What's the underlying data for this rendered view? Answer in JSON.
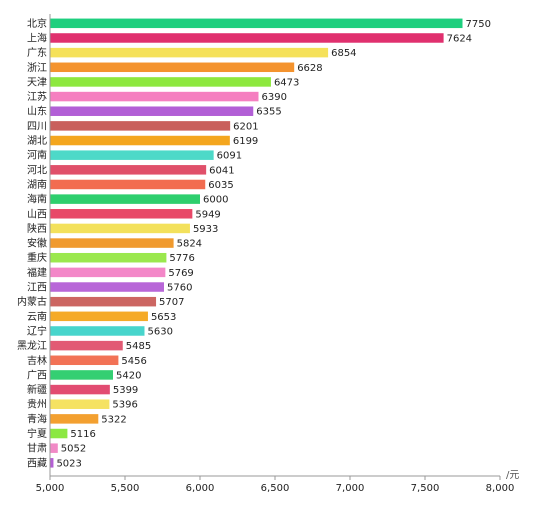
{
  "chart_data": {
    "type": "bar",
    "orientation": "horizontal",
    "categories": [
      "北京",
      "上海",
      "广东",
      "浙江",
      "天津",
      "江苏",
      "山东",
      "四川",
      "湖北",
      "河南",
      "河北",
      "湖南",
      "海南",
      "山西",
      "陕西",
      "安徽",
      "重庆",
      "福建",
      "江西",
      "内蒙古",
      "云南",
      "辽宁",
      "黑龙江",
      "吉林",
      "广西",
      "新疆",
      "贵州",
      "青海",
      "宁夏",
      "甘肃",
      "西藏"
    ],
    "values": [
      7750,
      7624,
      6854,
      6628,
      6473,
      6390,
      6355,
      6201,
      6199,
      6091,
      6041,
      6035,
      6000,
      5949,
      5933,
      5824,
      5776,
      5769,
      5760,
      5707,
      5653,
      5630,
      5485,
      5456,
      5420,
      5399,
      5396,
      5322,
      5116,
      5052,
      5023
    ],
    "colors": [
      "#1ecf7e",
      "#e0306e",
      "#f5e15a",
      "#f4932e",
      "#8ee83e",
      "#f57fc0",
      "#b25fd6",
      "#c9605c",
      "#f4a61e",
      "#4dd9c8",
      "#e0506a",
      "#f26c50",
      "#2ecf6e",
      "#e84868",
      "#f3e15c",
      "#f09a2e",
      "#9be84e",
      "#f387c8",
      "#b866d8",
      "#cc6662",
      "#f5aa28",
      "#48d5cc",
      "#e25a74",
      "#f27256",
      "#34cf72",
      "#e24c72",
      "#f5e262",
      "#f3a030",
      "#8ce842",
      "#f18ac6",
      "#b460d4"
    ],
    "xlim": [
      5000,
      8000
    ],
    "xticks": [
      5000,
      5500,
      6000,
      6500,
      7000,
      7500,
      8000
    ],
    "xtick_labels": [
      "5,000",
      "5,500",
      "6,000",
      "6,500",
      "7,000",
      "7,500",
      "8,000"
    ],
    "x_unit": "/元",
    "grid": false,
    "legend": "none"
  }
}
